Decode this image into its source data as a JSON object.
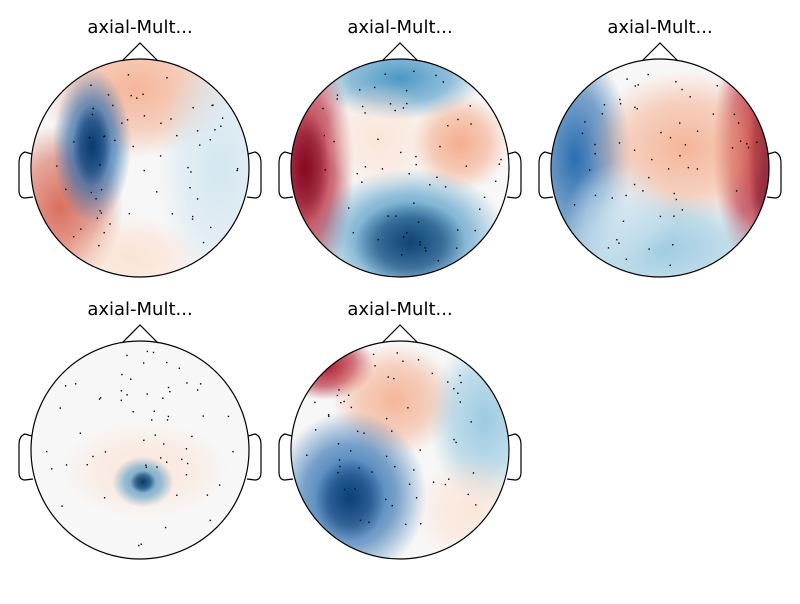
{
  "panels": [
    {
      "title": "axial-Mult..."
    },
    {
      "title": "axial-Mult..."
    },
    {
      "title": "axial-Mult..."
    },
    {
      "title": "axial-Mult..."
    },
    {
      "title": "axial-Mult..."
    }
  ]
}
